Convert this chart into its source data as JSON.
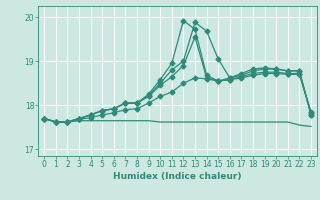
{
  "xlabel": "Humidex (Indice chaleur)",
  "bg_color": "#cce8e0",
  "grid_color": "#ffffff",
  "line_color": "#2e8b7a",
  "xlim": [
    -0.5,
    23.5
  ],
  "ylim": [
    16.85,
    20.25
  ],
  "yticks": [
    17,
    18,
    19,
    20
  ],
  "xticks": [
    0,
    1,
    2,
    3,
    4,
    5,
    6,
    7,
    8,
    9,
    10,
    11,
    12,
    13,
    14,
    15,
    16,
    17,
    18,
    19,
    20,
    21,
    22,
    23
  ],
  "line1": [
    17.7,
    17.62,
    17.62,
    17.65,
    17.65,
    17.65,
    17.65,
    17.65,
    17.65,
    17.65,
    17.62,
    17.62,
    17.62,
    17.62,
    17.62,
    17.62,
    17.62,
    17.62,
    17.62,
    17.62,
    17.62,
    17.62,
    17.55,
    17.52
  ],
  "line2": [
    17.7,
    17.62,
    17.62,
    17.68,
    17.72,
    17.78,
    17.83,
    17.9,
    17.92,
    18.05,
    18.2,
    18.3,
    18.5,
    18.62,
    18.6,
    18.55,
    18.58,
    18.62,
    18.68,
    18.72,
    18.72,
    18.7,
    18.7,
    17.85
  ],
  "line3": [
    17.7,
    17.62,
    17.62,
    17.7,
    17.78,
    17.88,
    17.92,
    18.05,
    18.05,
    18.2,
    18.45,
    18.65,
    18.9,
    19.55,
    18.62,
    18.55,
    18.58,
    18.65,
    18.72,
    18.75,
    18.75,
    18.72,
    18.72,
    17.82
  ],
  "line4": [
    17.7,
    17.62,
    17.62,
    17.7,
    17.78,
    17.88,
    17.92,
    18.05,
    18.05,
    18.22,
    18.5,
    18.8,
    19.0,
    19.88,
    19.68,
    19.05,
    18.62,
    18.68,
    18.78,
    18.82,
    18.82,
    18.78,
    18.78,
    17.78
  ],
  "line5": [
    17.7,
    17.62,
    17.62,
    17.7,
    17.78,
    17.88,
    17.92,
    18.05,
    18.05,
    18.25,
    18.58,
    18.95,
    19.92,
    19.72,
    18.68,
    18.55,
    18.62,
    18.72,
    18.82,
    18.85,
    18.82,
    18.78,
    18.78,
    17.78
  ],
  "marker": "D",
  "markersize": 2.5,
  "linewidth": 0.9,
  "tick_fontsize": 5.5,
  "xlabel_fontsize": 6.5
}
